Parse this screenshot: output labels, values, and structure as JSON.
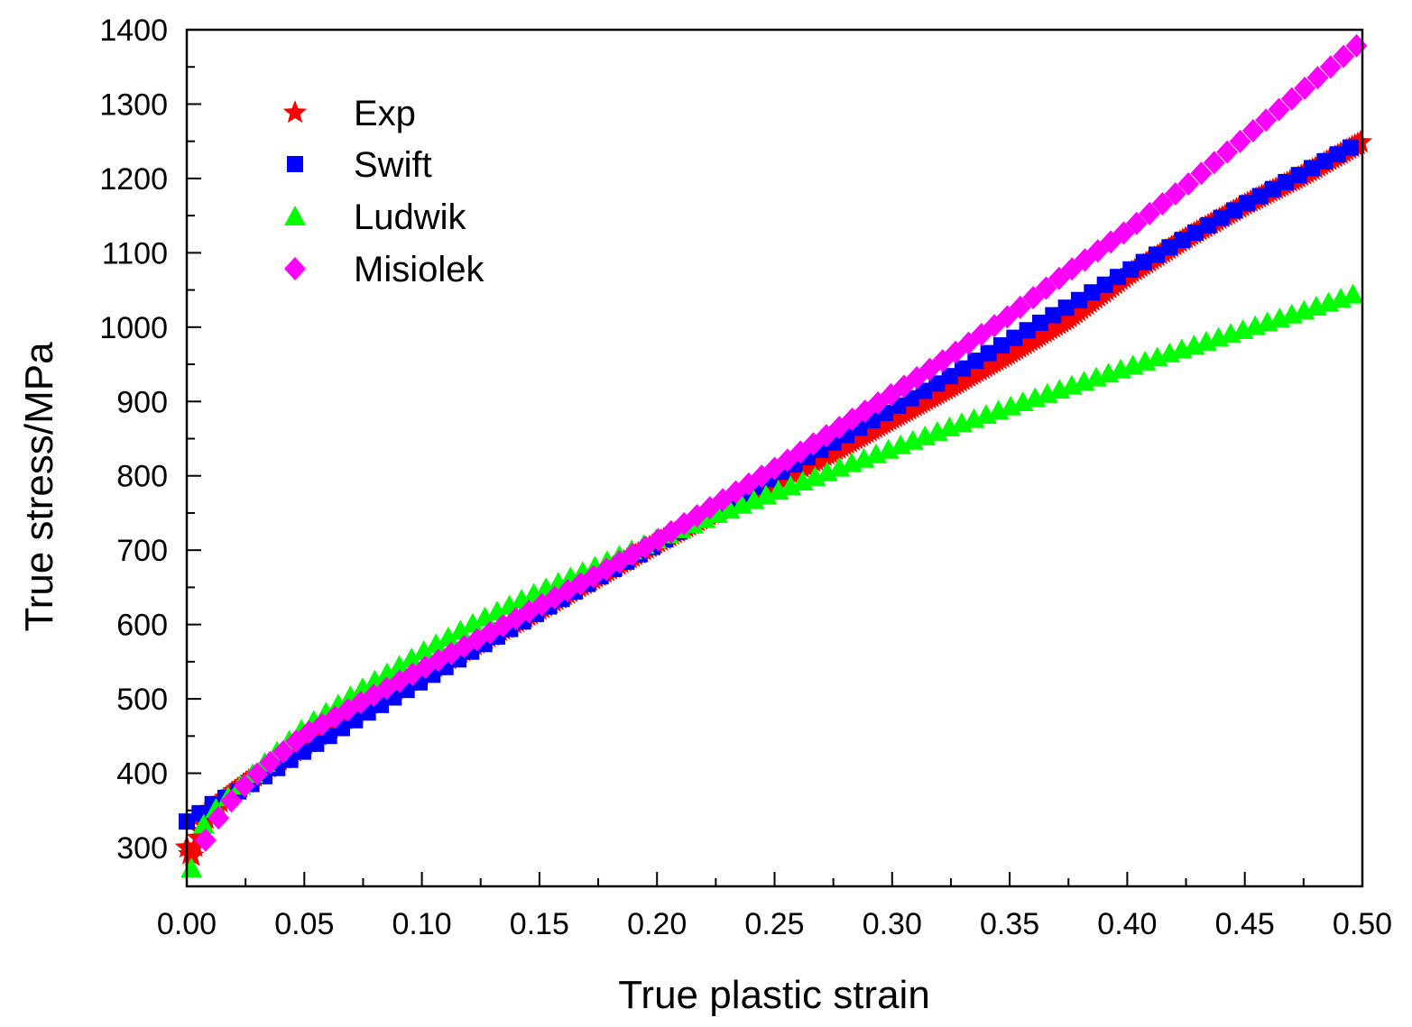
{
  "chart_data": {
    "type": "scatter",
    "title": "",
    "xlabel": "True plastic strain",
    "ylabel": "True stress/MPa",
    "xlim": [
      0.0,
      0.5
    ],
    "ylim": [
      250,
      1400
    ],
    "x_ticks": [
      0.0,
      0.05,
      0.1,
      0.15,
      0.2,
      0.25,
      0.3,
      0.35,
      0.4,
      0.45,
      0.5
    ],
    "x_tick_labels": [
      "0.00",
      "0.05",
      "0.10",
      "0.15",
      "0.20",
      "0.25",
      "0.30",
      "0.35",
      "0.40",
      "0.45",
      "0.50"
    ],
    "y_ticks": [
      300,
      400,
      500,
      600,
      700,
      800,
      900,
      1000,
      1100,
      1200,
      1300,
      1400
    ],
    "y_tick_labels": [
      "300",
      "400",
      "500",
      "600",
      "700",
      "800",
      "900",
      "1000",
      "1100",
      "1200",
      "1300",
      "1400"
    ],
    "legend_position": "top-left",
    "series": [
      {
        "name": "Exp",
        "marker": "star",
        "color": "#ff0000",
        "x": [
          0.0,
          0.002,
          0.005,
          0.01,
          0.02,
          0.03,
          0.05,
          0.075,
          0.1,
          0.125,
          0.15,
          0.175,
          0.2,
          0.225,
          0.25,
          0.275,
          0.3,
          0.325,
          0.35,
          0.375,
          0.4,
          0.425,
          0.45,
          0.475,
          0.5
        ],
        "y": [
          300,
          285,
          315,
          350,
          375,
          398,
          438,
          488,
          533,
          577,
          620,
          665,
          710,
          752,
          792,
          833,
          877,
          920,
          965,
          1012,
          1070,
          1120,
          1165,
          1205,
          1250
        ]
      },
      {
        "name": "Swift",
        "marker": "square",
        "color": "#0000ff",
        "x": [
          0.0,
          0.005,
          0.01,
          0.02,
          0.03,
          0.05,
          0.075,
          0.1,
          0.125,
          0.15,
          0.175,
          0.2,
          0.225,
          0.25,
          0.275,
          0.3,
          0.325,
          0.35,
          0.375,
          0.4,
          0.425,
          0.45,
          0.475,
          0.5
        ],
        "y": [
          335,
          345,
          357,
          372,
          390,
          430,
          478,
          524,
          571,
          617,
          663,
          708,
          755,
          800,
          845,
          890,
          935,
          982,
          1028,
          1075,
          1120,
          1165,
          1208,
          1250
        ]
      },
      {
        "name": "Ludwik",
        "marker": "triangle",
        "color": "#00ff00",
        "x": [
          0.002,
          0.005,
          0.01,
          0.02,
          0.03,
          0.05,
          0.075,
          0.1,
          0.125,
          0.15,
          0.175,
          0.2,
          0.225,
          0.25,
          0.275,
          0.3,
          0.325,
          0.35,
          0.375,
          0.4,
          0.425,
          0.45,
          0.475,
          0.5
        ],
        "y": [
          272,
          320,
          345,
          375,
          405,
          462,
          515,
          563,
          607,
          645,
          680,
          715,
          748,
          778,
          808,
          837,
          866,
          893,
          920,
          946,
          972,
          997,
          1022,
          1048
        ]
      },
      {
        "name": "Misiolek",
        "marker": "diamond",
        "color": "#ff00ff",
        "x": [
          0.008,
          0.015,
          0.025,
          0.035,
          0.05,
          0.075,
          0.1,
          0.125,
          0.15,
          0.175,
          0.2,
          0.225,
          0.25,
          0.275,
          0.3,
          0.325,
          0.35,
          0.375,
          0.4,
          0.425,
          0.45,
          0.475,
          0.5
        ],
        "y": [
          310,
          348,
          385,
          413,
          452,
          497,
          540,
          582,
          625,
          668,
          713,
          762,
          810,
          860,
          910,
          962,
          1016,
          1075,
          1130,
          1190,
          1255,
          1320,
          1385
        ]
      }
    ]
  }
}
